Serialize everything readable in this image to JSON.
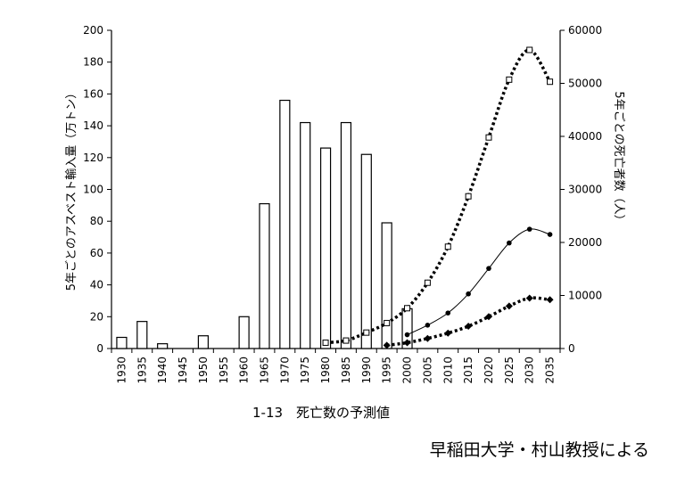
{
  "chart_data": {
    "type": "bar",
    "caption": "1-13　死亡数の予測値",
    "credit": "早稲田大学・村山教授による",
    "categories": [
      "1930",
      "1935",
      "1940",
      "1945",
      "1950",
      "1955",
      "1960",
      "1965",
      "1970",
      "1975",
      "1980",
      "1985",
      "1990",
      "1995",
      "2000",
      "2005",
      "2010",
      "2015",
      "2020",
      "2025",
      "2030",
      "2035"
    ],
    "y_left": {
      "label": "5年ごとのアスベスト輸入量（万トン）",
      "min": 0,
      "max": 200,
      "ticks": [
        0,
        20,
        40,
        60,
        80,
        100,
        120,
        140,
        160,
        180,
        200
      ]
    },
    "y_right": {
      "label": "5年ごとの死亡者数（人）",
      "min": 0,
      "max": 60000,
      "ticks": [
        0,
        10000,
        20000,
        30000,
        40000,
        50000,
        60000
      ]
    },
    "grid": false,
    "bars": {
      "axis": "left",
      "values": [
        7,
        17,
        3,
        0,
        8,
        0,
        20,
        91,
        156,
        142,
        126,
        142,
        122,
        79,
        25,
        null,
        null,
        null,
        null,
        null,
        null,
        null
      ]
    },
    "lines": [
      {
        "axis": "right",
        "style": "dotted",
        "marker": "square-open",
        "points": [
          {
            "x": "1980",
            "y": 1100
          },
          {
            "x": "1985",
            "y": 1500
          },
          {
            "x": "1990",
            "y": 3000
          },
          {
            "x": "1995",
            "y": 4800
          },
          {
            "x": "2000",
            "y": 7600
          },
          {
            "x": "2005",
            "y": 12400
          },
          {
            "x": "2010",
            "y": 19200
          },
          {
            "x": "2015",
            "y": 28700
          },
          {
            "x": "2020",
            "y": 39800
          },
          {
            "x": "2025",
            "y": 50700
          },
          {
            "x": "2030",
            "y": 56300
          },
          {
            "x": "2035",
            "y": 50300
          }
        ]
      },
      {
        "axis": "right",
        "style": "solid",
        "marker": "circle-filled",
        "points": [
          {
            "x": "2000",
            "y": 2600
          },
          {
            "x": "2005",
            "y": 4400
          },
          {
            "x": "2010",
            "y": 6700
          },
          {
            "x": "2015",
            "y": 10300
          },
          {
            "x": "2020",
            "y": 15100
          },
          {
            "x": "2025",
            "y": 19900
          },
          {
            "x": "2030",
            "y": 22500
          },
          {
            "x": "2035",
            "y": 21500
          }
        ]
      },
      {
        "axis": "right",
        "style": "dotted",
        "marker": "diamond-filled",
        "points": [
          {
            "x": "1995",
            "y": 600
          },
          {
            "x": "2000",
            "y": 1100
          },
          {
            "x": "2005",
            "y": 1900
          },
          {
            "x": "2010",
            "y": 2900
          },
          {
            "x": "2015",
            "y": 4200
          },
          {
            "x": "2020",
            "y": 6000
          },
          {
            "x": "2025",
            "y": 8000
          },
          {
            "x": "2030",
            "y": 9500
          },
          {
            "x": "2035",
            "y": 9200
          }
        ]
      }
    ]
  }
}
